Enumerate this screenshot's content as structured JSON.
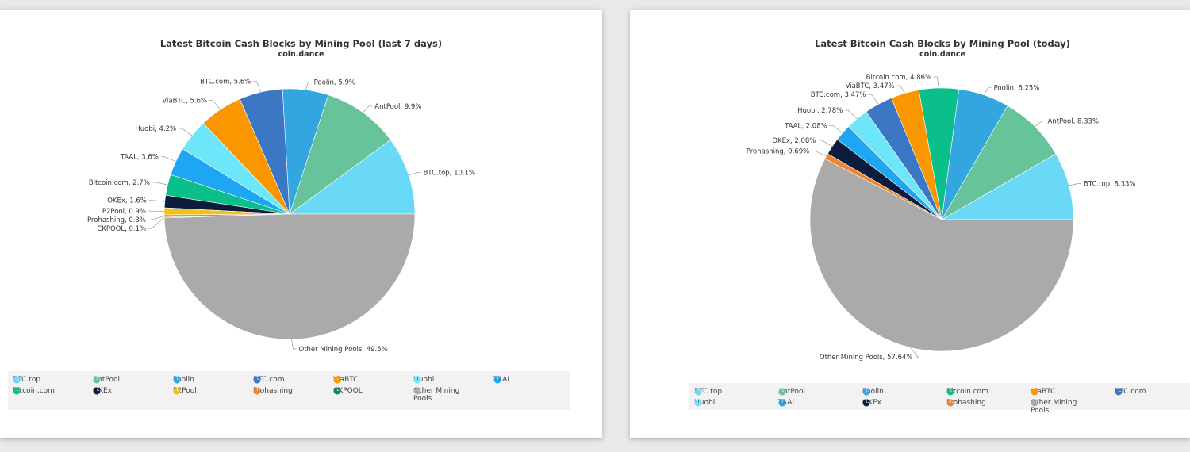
{
  "chart_data": [
    {
      "type": "pie",
      "title": "Latest Bitcoin Cash Blocks by Mining Pool (last 7 days)",
      "subtitle": "coin.dance",
      "slices": [
        {
          "name": "BTC.top",
          "value": 10.1,
          "label": "BTC.top, 10.1%",
          "color": "#6ad8f7"
        },
        {
          "name": "AntPool",
          "value": 9.9,
          "label": "AntPool, 9.9%",
          "color": "#66c39a"
        },
        {
          "name": "Poolin",
          "value": 5.9,
          "label": "Poolin, 5.9%",
          "color": "#33a6df"
        },
        {
          "name": "BTC.com",
          "value": 5.6,
          "label": "BTC.com, 5.6%",
          "color": "#3c77c4"
        },
        {
          "name": "ViaBTC",
          "value": 5.6,
          "label": "ViaBTC, 5.6%",
          "color": "#fa9700"
        },
        {
          "name": "Huobi",
          "value": 4.2,
          "label": "Huobi, 4.2%",
          "color": "#6ee6fa"
        },
        {
          "name": "TAAL",
          "value": 3.6,
          "label": "TAAL, 3.6%",
          "color": "#1ea6f2"
        },
        {
          "name": "Bitcoin.com",
          "value": 2.7,
          "label": "Bitcoin.com, 2.7%",
          "color": "#0abf8a"
        },
        {
          "name": "OKEx",
          "value": 1.6,
          "label": "OKEx, 1.6%",
          "color": "#0b1c3c"
        },
        {
          "name": "P2Pool",
          "value": 0.9,
          "label": "P2Pool, 0.9%",
          "color": "#f2c21b"
        },
        {
          "name": "Prohashing",
          "value": 0.3,
          "label": "Prohashing, 0.3%",
          "color": "#ee8430"
        },
        {
          "name": "CKPOOL",
          "value": 0.1,
          "label": "CKPOOL, 0.1%",
          "color": "#11826e"
        },
        {
          "name": "Other Mining Pools",
          "value": 49.5,
          "label": "Other Mining Pools, 49.5%",
          "color": "#aaaaaa"
        }
      ],
      "legend": [
        {
          "label": "BTC.top",
          "color": "#6ad8f7"
        },
        {
          "label": "AntPool",
          "color": "#66c39a"
        },
        {
          "label": "Poolin",
          "color": "#33a6df"
        },
        {
          "label": "BTC.com",
          "color": "#3c77c4"
        },
        {
          "label": "ViaBTC",
          "color": "#fa9700"
        },
        {
          "label": "Huobi",
          "color": "#6ee6fa"
        },
        {
          "label": "TAAL",
          "color": "#1ea6f2"
        },
        {
          "label": "Bitcoin.com",
          "color": "#0abf8a"
        },
        {
          "label": "OKEx",
          "color": "#0b1c3c"
        },
        {
          "label": "P2Pool",
          "color": "#f2c21b"
        },
        {
          "label": "Prohashing",
          "color": "#ee8430"
        },
        {
          "label": "CKPOOL",
          "color": "#11826e"
        },
        {
          "label": "Other Mining Pools",
          "color": "#aaaaaa"
        }
      ]
    },
    {
      "type": "pie",
      "title": "Latest Bitcoin Cash Blocks by Mining Pool (today)",
      "subtitle": "coin.dance",
      "slices": [
        {
          "name": "BTC.top",
          "value": 8.33,
          "label": "BTC.top, 8.33%",
          "color": "#6ad8f7"
        },
        {
          "name": "AntPool",
          "value": 8.33,
          "label": "AntPool, 8.33%",
          "color": "#66c39a"
        },
        {
          "name": "Poolin",
          "value": 6.25,
          "label": "Poolin, 6.25%",
          "color": "#33a6df"
        },
        {
          "name": "Bitcoin.com",
          "value": 4.86,
          "label": "Bitcoin.com, 4.86%",
          "color": "#0abf8a"
        },
        {
          "name": "ViaBTC",
          "value": 3.47,
          "label": "ViaBTC, 3.47%",
          "color": "#fa9700"
        },
        {
          "name": "BTC.com",
          "value": 3.47,
          "label": "BTC.com, 3.47%",
          "color": "#3c77c4"
        },
        {
          "name": "Huobi",
          "value": 2.78,
          "label": "Huobi, 2.78%",
          "color": "#6ee6fa"
        },
        {
          "name": "TAAL",
          "value": 2.08,
          "label": "TAAL, 2.08%",
          "color": "#1ea6f2"
        },
        {
          "name": "OKEx",
          "value": 2.08,
          "label": "OKEx, 2.08%",
          "color": "#0b1c3c"
        },
        {
          "name": "Prohashing",
          "value": 0.69,
          "label": "Prohashing, 0.69%",
          "color": "#ee8430"
        },
        {
          "name": "Other Mining Pools",
          "value": 57.64,
          "label": "Other Mining Pools, 57.64%",
          "color": "#aaaaaa"
        }
      ],
      "legend": [
        {
          "label": "BTC.top",
          "color": "#6ad8f7"
        },
        {
          "label": "AntPool",
          "color": "#66c39a"
        },
        {
          "label": "Poolin",
          "color": "#33a6df"
        },
        {
          "label": "Bitcoin.com",
          "color": "#0abf8a"
        },
        {
          "label": "ViaBTC",
          "color": "#fa9700"
        },
        {
          "label": "BTC.com",
          "color": "#3c77c4"
        },
        {
          "label": "Huobi",
          "color": "#6ee6fa"
        },
        {
          "label": "TAAL",
          "color": "#1ea6f2"
        },
        {
          "label": "OKEx",
          "color": "#0b1c3c"
        },
        {
          "label": "Prohashing",
          "color": "#ee8430"
        },
        {
          "label": "Other Mining Pools",
          "color": "#aaaaaa"
        }
      ]
    }
  ]
}
